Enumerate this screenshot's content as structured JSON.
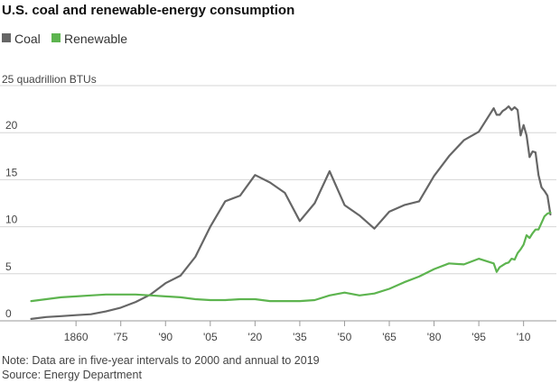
{
  "chart_data": {
    "type": "line",
    "title": "U.S. coal and renewable-energy consumption",
    "unit_label": "25 quadrillion BTUs",
    "ylim": [
      0,
      25
    ],
    "xlim": [
      1843,
      2021
    ],
    "yticks": [
      {
        "value": 0,
        "label": "0"
      },
      {
        "value": 5,
        "label": "5"
      },
      {
        "value": 10,
        "label": "10"
      },
      {
        "value": 15,
        "label": "15"
      },
      {
        "value": 20,
        "label": "20"
      }
    ],
    "xticks": [
      {
        "value": 1860,
        "label": "1860"
      },
      {
        "value": 1875,
        "label": "'75"
      },
      {
        "value": 1890,
        "label": "'90"
      },
      {
        "value": 1905,
        "label": "'05"
      },
      {
        "value": 1920,
        "label": "'20"
      },
      {
        "value": 1935,
        "label": "'35"
      },
      {
        "value": 1950,
        "label": "'50"
      },
      {
        "value": 1965,
        "label": "'65"
      },
      {
        "value": 1980,
        "label": "'80"
      },
      {
        "value": 1995,
        "label": "'95"
      },
      {
        "value": 2010,
        "label": "'10"
      }
    ],
    "grid": true,
    "legend_position": "top-left",
    "series": [
      {
        "name": "Coal",
        "color": "#666666",
        "points": [
          [
            1845,
            0.2
          ],
          [
            1850,
            0.4
          ],
          [
            1855,
            0.5
          ],
          [
            1860,
            0.6
          ],
          [
            1865,
            0.7
          ],
          [
            1870,
            1.0
          ],
          [
            1875,
            1.4
          ],
          [
            1880,
            2.0
          ],
          [
            1885,
            2.8
          ],
          [
            1890,
            4.0
          ],
          [
            1895,
            4.8
          ],
          [
            1900,
            6.8
          ],
          [
            1905,
            10.0
          ],
          [
            1910,
            12.7
          ],
          [
            1915,
            13.3
          ],
          [
            1920,
            15.5
          ],
          [
            1925,
            14.7
          ],
          [
            1930,
            13.6
          ],
          [
            1935,
            10.6
          ],
          [
            1940,
            12.5
          ],
          [
            1945,
            15.9
          ],
          [
            1950,
            12.3
          ],
          [
            1955,
            11.2
          ],
          [
            1960,
            9.8
          ],
          [
            1965,
            11.6
          ],
          [
            1970,
            12.3
          ],
          [
            1975,
            12.7
          ],
          [
            1980,
            15.4
          ],
          [
            1985,
            17.5
          ],
          [
            1990,
            19.2
          ],
          [
            1995,
            20.1
          ],
          [
            2000,
            22.6
          ],
          [
            2001,
            21.9
          ],
          [
            2002,
            21.9
          ],
          [
            2003,
            22.3
          ],
          [
            2004,
            22.5
          ],
          [
            2005,
            22.8
          ],
          [
            2006,
            22.4
          ],
          [
            2007,
            22.7
          ],
          [
            2008,
            22.4
          ],
          [
            2009,
            19.7
          ],
          [
            2010,
            20.8
          ],
          [
            2011,
            19.7
          ],
          [
            2012,
            17.4
          ],
          [
            2013,
            18.0
          ],
          [
            2014,
            17.9
          ],
          [
            2015,
            15.5
          ],
          [
            2016,
            14.2
          ],
          [
            2017,
            13.8
          ],
          [
            2018,
            13.3
          ],
          [
            2019,
            11.3
          ]
        ]
      },
      {
        "name": "Renewable",
        "color": "#5db44f",
        "points": [
          [
            1845,
            2.1
          ],
          [
            1850,
            2.3
          ],
          [
            1855,
            2.5
          ],
          [
            1860,
            2.6
          ],
          [
            1865,
            2.7
          ],
          [
            1870,
            2.8
          ],
          [
            1875,
            2.8
          ],
          [
            1880,
            2.8
          ],
          [
            1885,
            2.7
          ],
          [
            1890,
            2.6
          ],
          [
            1895,
            2.5
          ],
          [
            1900,
            2.3
          ],
          [
            1905,
            2.2
          ],
          [
            1910,
            2.2
          ],
          [
            1915,
            2.3
          ],
          [
            1920,
            2.3
          ],
          [
            1925,
            2.1
          ],
          [
            1930,
            2.1
          ],
          [
            1935,
            2.1
          ],
          [
            1940,
            2.2
          ],
          [
            1945,
            2.7
          ],
          [
            1950,
            3.0
          ],
          [
            1955,
            2.7
          ],
          [
            1960,
            2.9
          ],
          [
            1965,
            3.4
          ],
          [
            1970,
            4.1
          ],
          [
            1975,
            4.7
          ],
          [
            1980,
            5.5
          ],
          [
            1985,
            6.1
          ],
          [
            1990,
            6.0
          ],
          [
            1995,
            6.6
          ],
          [
            2000,
            6.1
          ],
          [
            2001,
            5.2
          ],
          [
            2002,
            5.7
          ],
          [
            2003,
            5.9
          ],
          [
            2004,
            6.1
          ],
          [
            2005,
            6.2
          ],
          [
            2006,
            6.6
          ],
          [
            2007,
            6.5
          ],
          [
            2008,
            7.2
          ],
          [
            2009,
            7.6
          ],
          [
            2010,
            8.1
          ],
          [
            2011,
            9.1
          ],
          [
            2012,
            8.8
          ],
          [
            2013,
            9.3
          ],
          [
            2014,
            9.7
          ],
          [
            2015,
            9.7
          ],
          [
            2016,
            10.4
          ],
          [
            2017,
            11.1
          ],
          [
            2018,
            11.4
          ],
          [
            2019,
            11.5
          ]
        ]
      }
    ],
    "notes": [
      "Note: Data are in five-year intervals to 2000 and annual to 2019",
      "Source: Energy Department"
    ]
  }
}
